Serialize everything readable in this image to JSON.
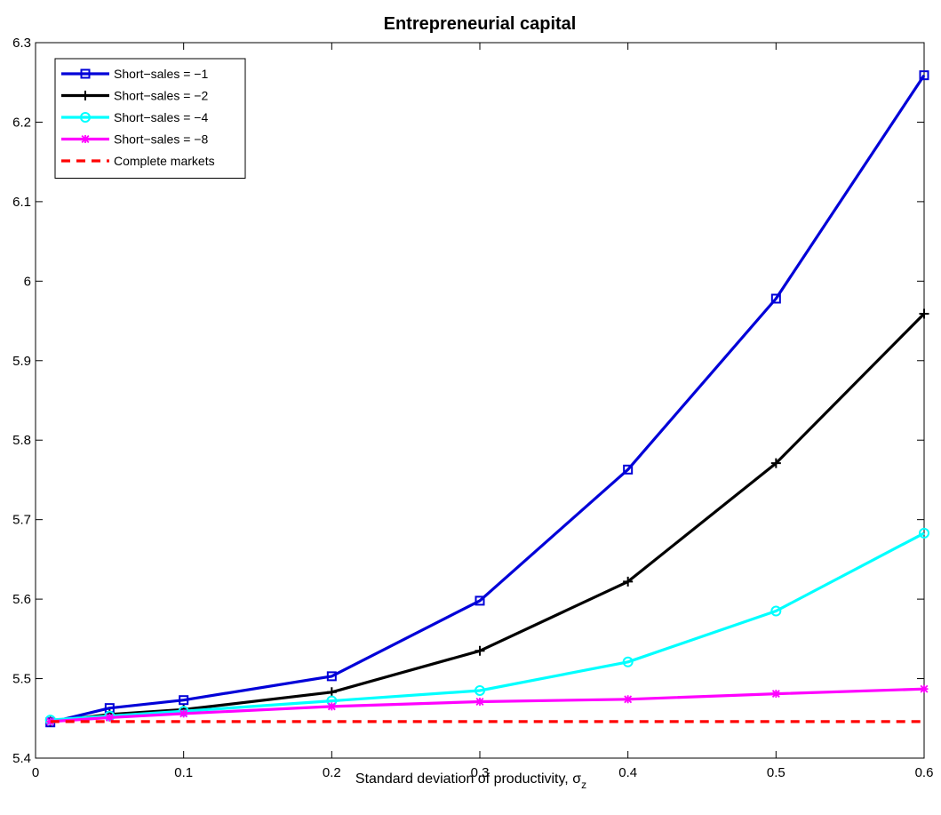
{
  "chart_data": {
    "type": "line",
    "title": "Entrepreneurial capital",
    "xlabel": "Standard deviation of productivity, ",
    "xlabel_symbol": "σ",
    "xlabel_subscript": "z",
    "ylabel": "",
    "xlim": [
      0,
      0.6
    ],
    "ylim": [
      5.4,
      6.3
    ],
    "xticks": [
      "0",
      "0.1",
      "0.2",
      "0.3",
      "0.4",
      "0.5",
      "0.6"
    ],
    "yticks": [
      "5.4",
      "5.5",
      "5.6",
      "5.7",
      "5.8",
      "5.9",
      "6",
      "6.1",
      "6.2",
      "6.3"
    ],
    "grid": false,
    "legend_position": "top-left",
    "x": [
      0.01,
      0.05,
      0.1,
      0.2,
      0.3,
      0.4,
      0.5,
      0.6
    ],
    "series": [
      {
        "name": "Short−sales = −1",
        "color": "#0000d8",
        "marker": "square",
        "values": [
          5.445,
          5.463,
          5.473,
          5.503,
          5.598,
          5.763,
          5.978,
          6.259
        ]
      },
      {
        "name": "Short−sales = −2",
        "color": "#000000",
        "marker": "plus",
        "values": [
          5.446,
          5.455,
          5.461,
          5.483,
          5.535,
          5.622,
          5.771,
          5.959
        ]
      },
      {
        "name": "Short−sales = −4",
        "color": "#00ffff",
        "marker": "circle",
        "values": [
          5.448,
          5.453,
          5.459,
          5.472,
          5.485,
          5.521,
          5.585,
          5.683
        ]
      },
      {
        "name": "Short−sales = −8",
        "color": "#ff00ff",
        "marker": "star",
        "values": [
          5.446,
          5.451,
          5.456,
          5.465,
          5.471,
          5.474,
          5.481,
          5.487
        ]
      },
      {
        "name": "Complete markets",
        "color": "#ff0000",
        "marker": "none",
        "dashed": true,
        "values": [
          5.446,
          5.446,
          5.446,
          5.446,
          5.446,
          5.446,
          5.446,
          5.446
        ]
      }
    ]
  }
}
